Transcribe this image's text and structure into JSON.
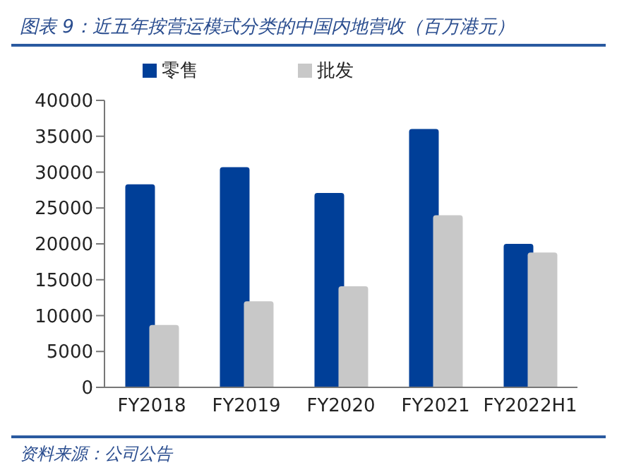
{
  "chart_data": {
    "type": "bar",
    "title": "图表 9：近五年按营运模式分类的中国内地营收（百万港元）",
    "categories": [
      "FY2018",
      "FY2019",
      "FY2020",
      "FY2021",
      "FY2022H1"
    ],
    "series": [
      {
        "name": "零售",
        "color": "#003f98",
        "values": [
          28300,
          30700,
          27100,
          36000,
          20000
        ]
      },
      {
        "name": "批发",
        "color": "#c8c8c8",
        "values": [
          8700,
          12000,
          14100,
          24000,
          18800
        ]
      }
    ],
    "ylim": [
      0,
      40000
    ],
    "yticks": [
      0,
      5000,
      10000,
      15000,
      20000,
      25000,
      30000,
      35000,
      40000
    ],
    "grid": false,
    "legend": "top",
    "annotations": [
      "资料来源：公司公告"
    ]
  }
}
